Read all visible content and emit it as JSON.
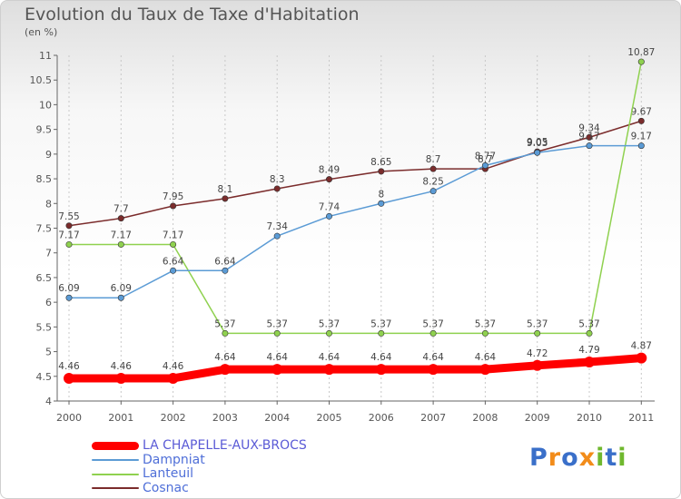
{
  "chart_data": {
    "type": "line",
    "title": "Evolution du Taux de Taxe d'Habitation",
    "subtitle": "(en %)",
    "x": [
      "2000",
      "2001",
      "2002",
      "2003",
      "2004",
      "2005",
      "2006",
      "2007",
      "2008",
      "2009",
      "2010",
      "2011"
    ],
    "ylim": [
      4,
      11
    ],
    "yticks": [
      "4",
      "4.5",
      "5",
      "5.5",
      "6",
      "6.5",
      "7",
      "7.5",
      "8",
      "8.5",
      "9",
      "9.5",
      "10",
      "10.5",
      "11"
    ],
    "grid": "vertical dashed",
    "legend_position": "bottom-left",
    "series": [
      {
        "name": "LA CHAPELLE-AUX-BROCS",
        "color": "#ff0000",
        "values": [
          4.46,
          4.46,
          4.46,
          4.64,
          4.64,
          4.64,
          4.64,
          4.64,
          4.64,
          4.72,
          4.79,
          4.87
        ],
        "labels": [
          "4.46",
          "4.46",
          "4.46",
          "4.64",
          "4.64",
          "4.64",
          "4.64",
          "4.64",
          "4.64",
          "4.72",
          "4.79",
          "4.87"
        ]
      },
      {
        "name": "Dampniat",
        "color": "#5b9bd5",
        "values": [
          6.09,
          6.09,
          6.64,
          6.64,
          7.34,
          7.74,
          8.0,
          8.25,
          8.77,
          9.03,
          9.17,
          9.17
        ],
        "labels": [
          "6.09",
          "6.09",
          "6.64",
          "6.64",
          "7.34",
          "7.74",
          "8",
          "8.25",
          "8.77",
          "9.03",
          "9.17",
          "9.17"
        ]
      },
      {
        "name": "Lanteuil",
        "color": "#8fd14f",
        "values": [
          7.17,
          7.17,
          7.17,
          5.37,
          5.37,
          5.37,
          5.37,
          5.37,
          5.37,
          5.37,
          5.37,
          10.87
        ],
        "labels": [
          "7.17",
          "7.17",
          "7.17",
          "5.37",
          "5.37",
          "5.37",
          "5.37",
          "5.37",
          "5.37",
          "5.37",
          "5.37",
          "10.87"
        ]
      },
      {
        "name": "Cosnac",
        "color": "#7b2c2c",
        "values": [
          7.55,
          7.7,
          7.95,
          8.1,
          8.3,
          8.49,
          8.65,
          8.7,
          8.7,
          9.05,
          9.34,
          9.67
        ],
        "labels": [
          "7.55",
          "7.7",
          "7.95",
          "8.1",
          "8.3",
          "8.49",
          "8.65",
          "8.7",
          "8.7",
          "9.05",
          "9.34",
          "9.67"
        ]
      }
    ]
  },
  "legend": {
    "items": [
      {
        "label": "LA CHAPELLE-AUX-BROCS",
        "color": "#ff0000"
      },
      {
        "label": "Dampniat",
        "color": "#5b9bd5"
      },
      {
        "label": "Lanteuil",
        "color": "#8fd14f"
      },
      {
        "label": "Cosnac",
        "color": "#7b2c2c"
      }
    ]
  },
  "logo": {
    "text": "Proxiti",
    "letter_colors": [
      "#3a6fc9",
      "#f28c1a",
      "#3a6fc9",
      "#f28c1a",
      "#6fb82e",
      "#3a6fc9",
      "#6fb82e"
    ]
  }
}
